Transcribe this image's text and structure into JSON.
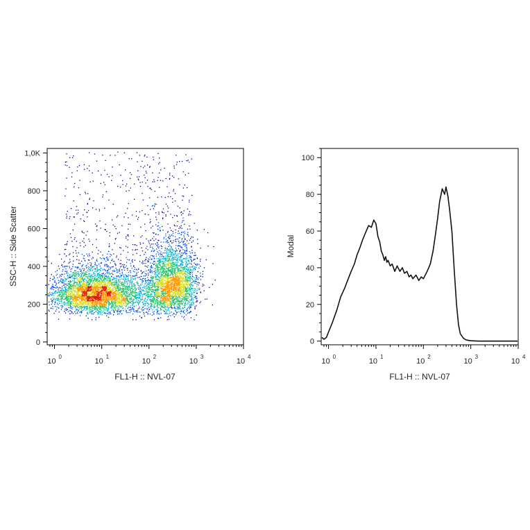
{
  "chart_data": [
    {
      "type": "scatter",
      "subtype": "flow-cytometry-density-dot-plot",
      "title": "",
      "xlabel": "FL1-H :: NVL-07",
      "ylabel": "SSC-H :: Side Scatter",
      "xscale": "log",
      "xlim": [
        0.7,
        10000
      ],
      "ylim": [
        -15,
        1024
      ],
      "x_tick_values": [
        1,
        10,
        100,
        1000,
        10000
      ],
      "x_tick_bases": [
        "10",
        "10",
        "10",
        "10",
        "10"
      ],
      "x_tick_exponents": [
        "0",
        "1",
        "2",
        "3",
        "4"
      ],
      "y_tick_values": [
        0,
        200,
        400,
        600,
        800,
        1000
      ],
      "y_tick_labels": [
        "0",
        "200",
        "400",
        "600",
        "800",
        "1,0K"
      ],
      "density_colormap": [
        "#00008c",
        "#0044dd",
        "#00b4d8",
        "#22c466",
        "#d8df1e",
        "#ff9a00",
        "#e01a00"
      ],
      "populations": [
        {
          "x_center": 6,
          "y_center": 240,
          "relative_density": "high"
        },
        {
          "x_center": 300,
          "y_center": 320,
          "relative_density": "highest"
        }
      ],
      "grid": false,
      "legend": "none"
    },
    {
      "type": "line",
      "subtype": "histogram",
      "title": "",
      "xlabel": "FL1-H :: NVL-07",
      "ylabel": "Modal",
      "xscale": "log",
      "xlim": [
        0.7,
        10000
      ],
      "ylim": [
        -2,
        105
      ],
      "x_tick_values": [
        1,
        10,
        100,
        1000,
        10000
      ],
      "x_tick_bases": [
        "10",
        "10",
        "10",
        "10",
        "10"
      ],
      "x_tick_exponents": [
        "0",
        "1",
        "2",
        "3",
        "4"
      ],
      "y_tick_values": [
        0,
        20,
        40,
        60,
        80,
        100
      ],
      "y_tick_labels": [
        "0",
        "20",
        "40",
        "60",
        "80",
        "100"
      ],
      "series": [
        {
          "color": "#111111",
          "x": [
            0.7,
            0.8,
            0.9,
            1.0,
            1.2,
            1.5,
            1.8,
            2.2,
            2.6,
            3.0,
            3.5,
            4.0,
            4.6,
            5.2,
            6.0,
            7.0,
            8.0,
            9.0,
            10.0,
            11.0,
            12.0,
            13.0,
            14.0,
            15.0,
            16.0,
            17.0,
            18.0,
            20.0,
            22.0,
            25.0,
            28.0,
            32.0,
            36.0,
            40.0,
            45.0,
            50.0,
            55.0,
            60.0,
            70.0,
            80.0,
            90.0,
            100.0,
            120.0,
            140.0,
            160.0,
            180.0,
            200.0,
            220.0,
            250.0,
            280.0,
            300.0,
            330.0,
            360.0,
            400.0,
            450.0,
            500.0,
            550.0,
            600.0,
            700.0,
            800.0,
            1000.0,
            1500.0,
            2000.0,
            3000.0,
            5000.0,
            10000.0
          ],
          "y": [
            2,
            1,
            2,
            5,
            10,
            17,
            24,
            29,
            34,
            38,
            42,
            47,
            51,
            55,
            59,
            63,
            62,
            66,
            64,
            57,
            54,
            49,
            47,
            44,
            46,
            43,
            44,
            41,
            42,
            38,
            41,
            38,
            40,
            37,
            38,
            35,
            36,
            34,
            36,
            33,
            35,
            34,
            38,
            42,
            49,
            58,
            67,
            76,
            83,
            80,
            84,
            79,
            71,
            60,
            38,
            20,
            9,
            4,
            1.5,
            0.6,
            0.2,
            0,
            0,
            0,
            0,
            0
          ]
        }
      ],
      "grid": false,
      "legend": "none"
    }
  ]
}
